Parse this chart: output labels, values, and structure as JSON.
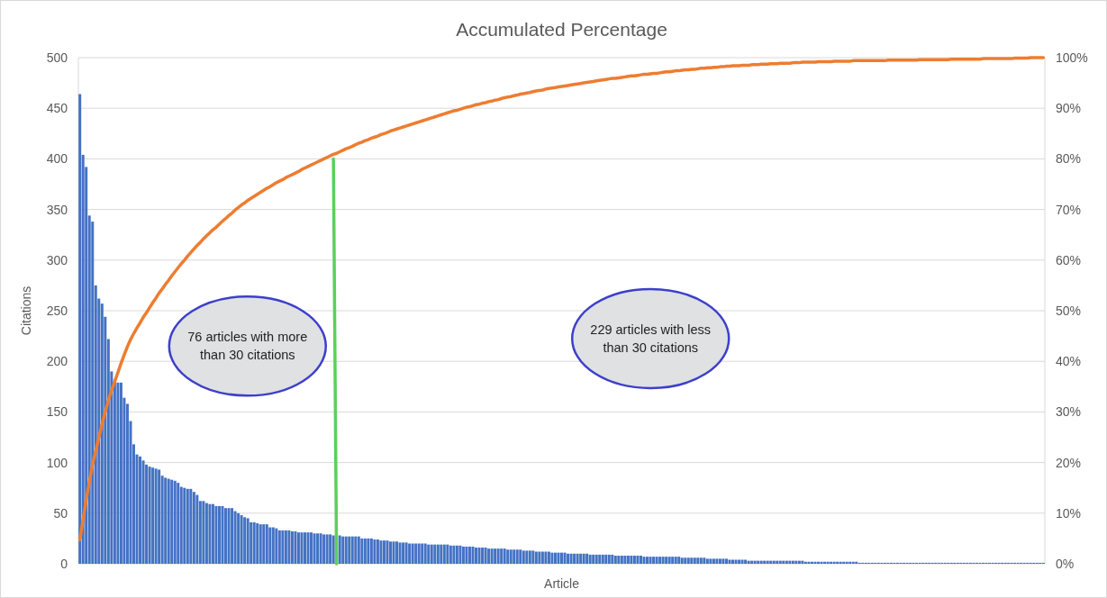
{
  "chart_data": {
    "type": "bar",
    "title": "Accumulated Percentage",
    "xlabel": "Article",
    "ylabel": "Citations",
    "categories": [
      null,
      null,
      null,
      null,
      null,
      null,
      null,
      null,
      null,
      null,
      null,
      null,
      null,
      null,
      null,
      null,
      null,
      null,
      null,
      null,
      null,
      null,
      null,
      null,
      null,
      null,
      null,
      null,
      null,
      null,
      null,
      null,
      null,
      null,
      null,
      null,
      null,
      null,
      null,
      null,
      null,
      null,
      null,
      null,
      null,
      null,
      null,
      null,
      null,
      null,
      null,
      null,
      null,
      null,
      null,
      null,
      null,
      null,
      null,
      null,
      null,
      null,
      null,
      null,
      null,
      null,
      null,
      null,
      null,
      null,
      null,
      null,
      null,
      null,
      null,
      null,
      null,
      null,
      null,
      null,
      null,
      null,
      null,
      null,
      null,
      null,
      null,
      null,
      null,
      null,
      null,
      null,
      null,
      null,
      null,
      null,
      null,
      null,
      null,
      null,
      null,
      null,
      null,
      null,
      null,
      null,
      null,
      null,
      null,
      null,
      null,
      null,
      null,
      null,
      null,
      null,
      null,
      null,
      null,
      null,
      null,
      null,
      null,
      null,
      null,
      null,
      null,
      null,
      null,
      null,
      null,
      null,
      null,
      null,
      null,
      null,
      null,
      null,
      null,
      null,
      null,
      null,
      null,
      null,
      null,
      null,
      null,
      null,
      null,
      null,
      null,
      null,
      null,
      null,
      null,
      null,
      null,
      null,
      null,
      null,
      null,
      null,
      null,
      null,
      null,
      null,
      null,
      null,
      null,
      null,
      null,
      null,
      null,
      null,
      null,
      null,
      null,
      null,
      null,
      null,
      null,
      null,
      null,
      null,
      null,
      null,
      null,
      null,
      null,
      null,
      null,
      null,
      null,
      null,
      null,
      null,
      null,
      null,
      null,
      null,
      null,
      null,
      null,
      null,
      null,
      null,
      null,
      null,
      null,
      null,
      null,
      null,
      null,
      null,
      null,
      null,
      null,
      null,
      null,
      null,
      null,
      null,
      null,
      null,
      null,
      null,
      null,
      null,
      null,
      null,
      null,
      null,
      null,
      null,
      null,
      null,
      null,
      null,
      null,
      null,
      null,
      null,
      null,
      null,
      null,
      null,
      null,
      null,
      null,
      null,
      null,
      null,
      null,
      null,
      null,
      null,
      null,
      null,
      null,
      null,
      null,
      null,
      null,
      null,
      null,
      null,
      null,
      null,
      null,
      null,
      null,
      null,
      null,
      null,
      null,
      null,
      null,
      null,
      null,
      null,
      null,
      null,
      null,
      null,
      null,
      null,
      null,
      null,
      null,
      null,
      null,
      null,
      null,
      null,
      null,
      null,
      null,
      null,
      null,
      null,
      null,
      null,
      null,
      null,
      null
    ],
    "series": [
      {
        "type": "bar",
        "color": "#4472c4",
        "values": [
          464,
          404,
          392,
          344,
          338,
          275,
          262,
          257,
          244,
          222,
          190,
          182,
          179,
          179,
          164,
          158,
          141,
          118,
          108,
          106,
          102,
          98,
          96,
          95,
          94,
          93,
          87,
          85,
          84,
          83,
          82,
          80,
          76,
          75,
          74,
          74,
          71,
          68,
          62,
          62,
          60,
          59,
          59,
          57,
          57,
          57,
          55,
          55,
          55,
          52,
          50,
          48,
          46,
          45,
          41,
          41,
          40,
          39,
          39,
          39,
          36,
          36,
          35,
          33,
          33,
          33,
          33,
          32,
          32,
          31,
          31,
          31,
          31,
          31,
          30,
          30,
          30,
          29,
          29,
          29,
          28,
          null,
          28,
          27,
          27,
          27,
          27,
          27,
          27,
          25,
          25,
          25,
          25,
          24,
          24,
          23,
          23,
          23,
          22,
          22,
          22,
          21,
          21,
          21,
          20,
          20,
          20,
          20,
          20,
          20,
          19,
          19,
          19,
          19,
          19,
          19,
          19,
          18,
          18,
          18,
          18,
          17,
          17,
          17,
          17,
          16,
          16,
          16,
          16,
          15,
          15,
          15,
          15,
          15,
          15,
          14,
          14,
          14,
          14,
          14,
          13,
          13,
          13,
          13,
          12,
          12,
          12,
          12,
          12,
          11,
          11,
          11,
          11,
          11,
          10,
          10,
          10,
          10,
          10,
          10,
          10,
          9,
          9,
          9,
          9,
          9,
          9,
          9,
          9,
          8,
          8,
          8,
          8,
          8,
          8,
          8,
          8,
          8,
          7,
          7,
          7,
          7,
          7,
          7,
          7,
          7,
          7,
          7,
          7,
          7,
          6,
          6,
          6,
          6,
          6,
          6,
          6,
          6,
          5,
          5,
          5,
          5,
          5,
          5,
          5,
          4,
          4,
          4,
          4,
          4,
          4,
          3,
          3,
          3,
          3,
          3,
          3,
          3,
          3,
          3,
          3,
          3,
          3,
          3,
          3,
          3,
          3,
          3,
          3,
          2,
          2,
          2,
          2,
          2,
          2,
          2,
          2,
          2,
          2,
          2,
          2,
          2,
          2,
          2,
          2,
          2,
          1,
          1,
          1,
          1,
          1,
          1,
          1,
          1,
          1,
          1,
          1,
          1,
          1,
          1,
          1,
          1,
          1,
          1,
          1,
          1,
          1,
          1,
          1,
          1,
          1,
          1,
          1,
          1,
          1,
          1,
          1,
          1,
          1,
          1,
          1,
          1,
          1,
          1,
          1,
          1,
          1,
          1,
          1,
          1,
          1,
          1,
          1,
          1,
          1,
          1,
          1,
          1,
          1,
          1,
          1,
          1,
          1,
          1,
          1
        ]
      },
      {
        "type": "line",
        "axis": "y2",
        "color": "#ed7d31",
        "values": [
          4.7,
          8.7,
          12.7,
          16.2,
          19.6,
          22.3,
          25.0,
          27.6,
          30.0,
          32.3,
          34.2,
          36.0,
          37.8,
          39.6,
          41.3,
          42.9,
          44.3,
          45.5,
          46.6,
          47.6,
          48.7,
          49.6,
          50.6,
          51.6,
          52.5,
          53.5,
          54.3,
          55.2,
          56.0,
          56.9,
          57.7,
          58.5,
          59.3,
          60.0,
          60.8,
          61.5,
          62.2,
          62.9,
          63.5,
          64.2,
          64.8,
          65.4,
          66.0,
          66.5,
          67.1,
          67.7,
          68.2,
          68.8,
          69.3,
          69.9,
          70.4,
          70.9,
          71.3,
          71.8,
          72.2,
          72.6,
          73.0,
          73.4,
          73.8,
          74.2,
          74.5,
          74.9,
          75.3,
          75.6,
          75.9,
          76.3,
          76.6,
          76.9,
          77.2,
          77.5,
          77.9,
          78.2,
          78.5,
          78.8,
          79.1,
          79.4,
          79.7,
          80.0,
          80.3,
          80.6,
          80.9,
          81.1,
          81.4,
          81.7,
          82.0,
          82.2,
          82.5,
          82.8,
          83.1,
          83.3,
          83.6,
          83.8,
          84.1,
          84.3,
          84.5,
          84.8,
          85.0,
          85.2,
          85.5,
          85.7,
          85.9,
          86.1,
          86.3,
          86.5,
          86.7,
          86.9,
          87.1,
          87.3,
          87.5,
          87.7,
          87.9,
          88.1,
          88.3,
          88.5,
          88.7,
          88.9,
          89.1,
          89.3,
          89.5,
          89.6,
          89.8,
          90.0,
          90.2,
          90.3,
          90.5,
          90.7,
          90.8,
          91.0,
          91.1,
          91.3,
          91.4,
          91.6,
          91.7,
          91.9,
          92.1,
          92.2,
          92.3,
          92.5,
          92.6,
          92.8,
          92.9,
          93.0,
          93.1,
          93.3,
          93.4,
          93.5,
          93.6,
          93.8,
          93.9,
          94.0,
          94.1,
          94.2,
          94.3,
          94.4,
          94.5,
          94.6,
          94.7,
          94.8,
          94.9,
          95.0,
          95.1,
          95.2,
          95.3,
          95.4,
          95.5,
          95.6,
          95.7,
          95.8,
          95.9,
          95.9,
          96.0,
          96.1,
          96.2,
          96.3,
          96.4,
          96.4,
          96.5,
          96.6,
          96.7,
          96.7,
          96.8,
          96.9,
          96.9,
          97.0,
          97.1,
          97.2,
          97.2,
          97.3,
          97.4,
          97.4,
          97.5,
          97.6,
          97.6,
          97.7,
          97.7,
          97.8,
          97.9,
          97.9,
          98.0,
          98.0,
          98.1,
          98.1,
          98.2,
          98.2,
          98.3,
          98.3,
          98.4,
          98.4,
          98.4,
          98.5,
          98.5,
          98.5,
          98.6,
          98.6,
          98.6,
          98.7,
          98.7,
          98.7,
          98.8,
          98.8,
          98.8,
          98.9,
          98.9,
          98.9,
          98.9,
          99.0,
          99.0,
          99.0,
          99.1,
          99.1,
          99.1,
          99.1,
          99.1,
          99.2,
          99.2,
          99.2,
          99.2,
          99.2,
          99.3,
          99.3,
          99.3,
          99.3,
          99.3,
          99.3,
          99.4,
          99.4,
          99.4,
          99.4,
          99.4,
          99.4,
          99.4,
          99.4,
          99.4,
          99.4,
          99.4,
          99.5,
          99.5,
          99.5,
          99.5,
          99.5,
          99.5,
          99.5,
          99.5,
          99.5,
          99.5,
          99.6,
          99.6,
          99.6,
          99.6,
          99.6,
          99.6,
          99.6,
          99.6,
          99.6,
          99.6,
          99.7,
          99.7,
          99.7,
          99.7,
          99.7,
          99.7,
          99.7,
          99.7,
          99.7,
          99.7,
          99.8,
          99.8,
          99.8,
          99.8,
          99.8,
          99.8,
          99.8,
          99.8,
          99.8,
          99.8,
          99.9,
          99.9,
          99.9,
          99.9,
          99.9,
          100,
          100,
          100,
          100,
          100
        ]
      },
      {
        "type": "line",
        "color": "#5ccf5c",
        "values": [
          null,
          null,
          null,
          null,
          null,
          null,
          null,
          null,
          null,
          null,
          null,
          null,
          null,
          null,
          null,
          null,
          null,
          null,
          null,
          null,
          null,
          null,
          null,
          null,
          null,
          null,
          null,
          null,
          null,
          null,
          null,
          null,
          null,
          null,
          null,
          null,
          null,
          null,
          null,
          null,
          null,
          null,
          null,
          null,
          null,
          null,
          null,
          null,
          null,
          null,
          null,
          null,
          null,
          null,
          null,
          null,
          null,
          null,
          null,
          null,
          null,
          null,
          null,
          null,
          null,
          null,
          null,
          null,
          null,
          null,
          null,
          null,
          null,
          null,
          null,
          null,
          null,
          null,
          null,
          null,
          400,
          0,
          null,
          null,
          null,
          null,
          null,
          null,
          null,
          null,
          null,
          null,
          null,
          null,
          null,
          null,
          null,
          null,
          null,
          null,
          null,
          null,
          null,
          null,
          null,
          null,
          null,
          null,
          null,
          null,
          null,
          null,
          null,
          null,
          null,
          null,
          null,
          null,
          null,
          null,
          null,
          null,
          null,
          null,
          null,
          null,
          null,
          null,
          null,
          null,
          null,
          null,
          null,
          null,
          null,
          null,
          null,
          null,
          null,
          null,
          null,
          null,
          null,
          null,
          null,
          null,
          null,
          null,
          null,
          null,
          null,
          null,
          null,
          null,
          null,
          null,
          null,
          null,
          null,
          null,
          null,
          null,
          null,
          null,
          null,
          null,
          null,
          null,
          null,
          null,
          null,
          null,
          null,
          null,
          null,
          null,
          null,
          null,
          null,
          null,
          null,
          null,
          null,
          null,
          null,
          null,
          null,
          null,
          null,
          null,
          null,
          null,
          null,
          null,
          null,
          null,
          null,
          null,
          null,
          null,
          null,
          null,
          null,
          null,
          null,
          null,
          null,
          null,
          null,
          null,
          null,
          null,
          null,
          null,
          null,
          null,
          null,
          null,
          null,
          null,
          null,
          null,
          null,
          null,
          null,
          null,
          null,
          null,
          null,
          null,
          null,
          null,
          null,
          null,
          null,
          null,
          null,
          null,
          null,
          null,
          null,
          null,
          null,
          null,
          null,
          null,
          null,
          null,
          null,
          null,
          null,
          null,
          null,
          null,
          null,
          null,
          null,
          null,
          null,
          null,
          null,
          null,
          null,
          null,
          null,
          null,
          null,
          null,
          null,
          null,
          null,
          null,
          null,
          null,
          null,
          null,
          null,
          null,
          null,
          null,
          null,
          null,
          null,
          null,
          null,
          null,
          null,
          null,
          null,
          null,
          null,
          null,
          null,
          null,
          null,
          null,
          null,
          null,
          null,
          null,
          null,
          null,
          null,
          null,
          null
        ]
      }
    ],
    "ylim": [
      0,
      500
    ],
    "yticks": [
      0,
      50,
      100,
      150,
      200,
      250,
      300,
      350,
      400,
      450,
      500
    ],
    "y2lim": [
      0,
      100
    ],
    "y2ticks": [
      {
        "value": 0,
        "label": "0%"
      },
      {
        "value": 10,
        "label": "10%"
      },
      {
        "value": 20,
        "label": "20%"
      },
      {
        "value": 30,
        "label": "30%"
      },
      {
        "value": 40,
        "label": "40%"
      },
      {
        "value": 50,
        "label": "50%"
      },
      {
        "value": 60,
        "label": "60%"
      },
      {
        "value": 70,
        "label": "70%"
      },
      {
        "value": 80,
        "label": "80%"
      },
      {
        "value": 90,
        "label": "90%"
      },
      {
        "value": 100,
        "label": "100%"
      }
    ],
    "grid": "y",
    "annotations": [
      "76 articles with more than 30 citations",
      "229 articles with less than 30 citations"
    ]
  }
}
